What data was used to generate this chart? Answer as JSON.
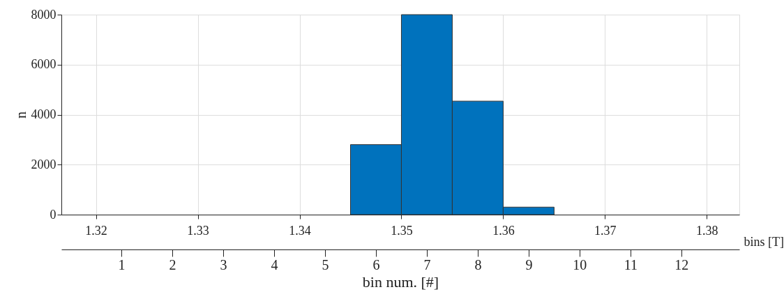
{
  "chart_data": {
    "type": "histogram",
    "xlabel": "bins [T]",
    "ylabel": "n",
    "x2label": "bin num. [#]",
    "bins": [
      1.32,
      1.325,
      1.33,
      1.335,
      1.34,
      1.345,
      1.35,
      1.355,
      1.36,
      1.365,
      1.37,
      1.375,
      1.38
    ],
    "values": [
      0,
      0,
      0,
      0,
      0,
      2800,
      8000,
      4540,
      300,
      0,
      0,
      0
    ],
    "color": "#0072bd",
    "xlim": [
      1.3166,
      1.3832
    ],
    "xticks": [
      1.32,
      1.33,
      1.34,
      1.35,
      1.36,
      1.37,
      1.38
    ],
    "x2lim": [
      -0.18,
      13.14
    ],
    "x2ticks": [
      1,
      2,
      3,
      4,
      5,
      6,
      7,
      8,
      9,
      10,
      11,
      12
    ],
    "ylim": [
      0,
      8000
    ],
    "yticks": [
      0,
      2000,
      4000,
      6000,
      8000
    ],
    "grid": true
  }
}
